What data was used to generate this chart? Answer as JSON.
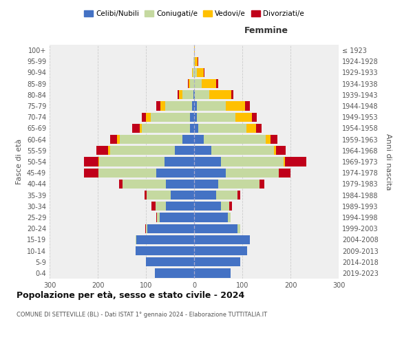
{
  "age_groups": [
    "0-4",
    "5-9",
    "10-14",
    "15-19",
    "20-24",
    "25-29",
    "30-34",
    "35-39",
    "40-44",
    "45-49",
    "50-54",
    "55-59",
    "60-64",
    "65-69",
    "70-74",
    "75-79",
    "80-84",
    "85-89",
    "90-94",
    "95-99",
    "100+"
  ],
  "birth_years": [
    "2019-2023",
    "2014-2018",
    "2009-2013",
    "2004-2008",
    "1999-2003",
    "1994-1998",
    "1989-1993",
    "1984-1988",
    "1979-1983",
    "1974-1978",
    "1969-1973",
    "1964-1968",
    "1959-1963",
    "1954-1958",
    "1949-1953",
    "1944-1948",
    "1939-1943",
    "1934-1938",
    "1929-1933",
    "1924-1928",
    "≤ 1923"
  ],
  "male": {
    "celibi": [
      82,
      100,
      122,
      120,
      97,
      72,
      58,
      48,
      58,
      78,
      62,
      40,
      25,
      8,
      8,
      5,
      2,
      0,
      0,
      0,
      0
    ],
    "coniugati": [
      0,
      0,
      0,
      2,
      3,
      5,
      22,
      50,
      90,
      120,
      135,
      135,
      130,
      100,
      82,
      55,
      22,
      8,
      3,
      1,
      0
    ],
    "vedovi": [
      0,
      0,
      0,
      0,
      0,
      0,
      0,
      0,
      0,
      0,
      2,
      3,
      5,
      5,
      10,
      10,
      8,
      3,
      1,
      0,
      0
    ],
    "divorziati": [
      0,
      0,
      0,
      0,
      2,
      2,
      8,
      5,
      8,
      30,
      30,
      25,
      15,
      15,
      8,
      8,
      3,
      2,
      1,
      0,
      0
    ]
  },
  "female": {
    "nubili": [
      75,
      95,
      110,
      115,
      90,
      70,
      55,
      45,
      50,
      65,
      55,
      35,
      20,
      8,
      5,
      5,
      2,
      0,
      0,
      0,
      0
    ],
    "coniugate": [
      0,
      0,
      0,
      0,
      5,
      5,
      18,
      45,
      85,
      110,
      130,
      130,
      128,
      100,
      80,
      60,
      30,
      15,
      5,
      2,
      0
    ],
    "vedove": [
      0,
      0,
      0,
      0,
      0,
      0,
      0,
      0,
      0,
      0,
      3,
      5,
      10,
      20,
      35,
      40,
      45,
      30,
      15,
      5,
      1
    ],
    "divorziate": [
      0,
      0,
      0,
      0,
      0,
      0,
      5,
      5,
      10,
      25,
      45,
      20,
      15,
      12,
      10,
      10,
      5,
      5,
      2,
      2,
      0
    ]
  },
  "colors": {
    "celibi_nubili": "#4472c4",
    "coniugati": "#c5d9a0",
    "vedovi": "#ffc000",
    "divorziati": "#c0001a"
  },
  "xlim": 300,
  "title": "Popolazione per età, sesso e stato civile - 2024",
  "subtitle": "COMUNE DI SETTEVILLE (BL) - Dati ISTAT 1° gennaio 2024 - Elaborazione TUTTITALIA.IT",
  "xlabel_right": "Femmine",
  "ylabel_left": "Fasce di età",
  "ylabel_right": "Anni di nascita",
  "legend_labels": [
    "Celibi/Nubili",
    "Coniugati/e",
    "Vedovi/e",
    "Divorziati/e"
  ],
  "background_color": "#ffffff",
  "plot_bg_color": "#efefef"
}
